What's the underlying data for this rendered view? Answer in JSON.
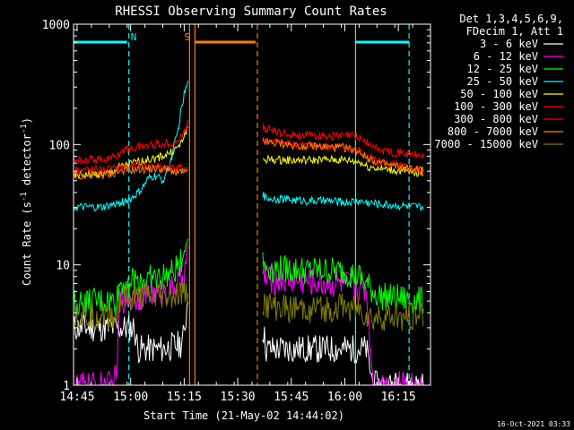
{
  "chart_data": {
    "type": "line",
    "title": "RHESSI Observing Summary Count Rates",
    "xlabel": "Start Time (21-May-02 14:44:02)",
    "ylabel_main": "Count Rate (s",
    "ylabel_sup1": "-1",
    "ylabel_mid": " detector",
    "ylabel_sup2": "-1",
    "ylabel_end": ")",
    "y_scale": "log",
    "ylim": [
      1,
      1000
    ],
    "xlim_minutes": [
      0,
      100
    ],
    "x_ticks": [
      "14:45",
      "15:00",
      "15:15",
      "15:30",
      "15:45",
      "16:00",
      "16:15"
    ],
    "x_tick_minutes": [
      1,
      16,
      31,
      46,
      61,
      76,
      91
    ],
    "y_ticks": [
      "1",
      "10",
      "100",
      "1000"
    ],
    "y_tick_values": [
      1,
      10,
      100,
      1000
    ],
    "legend_header": [
      "Det 1,3,4,5,6,9,",
      "FDecim 1, Att 1"
    ],
    "series": [
      {
        "name": "3 - 6 keV",
        "color": "#ffffff",
        "x": [
          0,
          17,
          18,
          25,
          30,
          31,
          32,
          53,
          54,
          62,
          68,
          74,
          80,
          82,
          84,
          98
        ],
        "y": [
          3.0,
          3.0,
          2.0,
          2.0,
          2.2,
          2.6,
          5.5,
          3.0,
          2.0,
          2.0,
          2.0,
          2.0,
          2.0,
          2.0,
          1.0,
          1.0
        ]
      },
      {
        "name": "6 - 12 keV",
        "color": "#ff00ff",
        "x": [
          0,
          11,
          12,
          13,
          18,
          24,
          28,
          30,
          31,
          32,
          53,
          54,
          60,
          66,
          72,
          76,
          80,
          82,
          84,
          98
        ],
        "y": [
          1.0,
          1.0,
          1.2,
          5.2,
          5.5,
          5.8,
          6.3,
          7.5,
          8.5,
          14,
          8.5,
          7.5,
          7.5,
          7.3,
          7.0,
          7.0,
          6.5,
          6.3,
          1.0,
          1.0
        ]
      },
      {
        "name": "12 - 25 keV",
        "color": "#00ff00",
        "x": [
          0,
          12,
          13,
          18,
          24,
          28,
          30,
          31,
          32,
          53,
          54,
          60,
          66,
          72,
          76,
          80,
          82,
          84,
          86,
          98
        ],
        "y": [
          4.8,
          5.0,
          7.0,
          7.5,
          7.8,
          8.5,
          10.5,
          13,
          17,
          10.5,
          9.5,
          9.2,
          9.0,
          9.0,
          8.8,
          8.0,
          7.0,
          6.0,
          5.5,
          5.0
        ]
      },
      {
        "name": "25 - 50 keV",
        "color": "#00ffff",
        "x": [
          0,
          8,
          12,
          16,
          19,
          21,
          23,
          25,
          27,
          29,
          30,
          31,
          32,
          53,
          54,
          60,
          66,
          72,
          76,
          80,
          82,
          86,
          92,
          98
        ],
        "y": [
          30,
          30,
          32,
          35,
          42,
          52,
          55,
          50,
          70,
          120,
          180,
          260,
          320,
          38,
          36,
          35,
          34,
          34,
          33,
          34,
          33,
          32,
          31,
          30
        ]
      },
      {
        "name": "50 - 100 keV",
        "color": "#ffff00",
        "x": [
          0,
          10,
          13,
          18,
          24,
          28,
          30,
          31,
          32,
          53,
          54,
          60,
          66,
          72,
          76,
          80,
          82,
          86,
          92,
          98
        ],
        "y": [
          55,
          58,
          65,
          72,
          78,
          88,
          100,
          120,
          140,
          75,
          75,
          74,
          74,
          75,
          74,
          72,
          66,
          63,
          60,
          58
        ]
      },
      {
        "name": "100 - 300 keV",
        "color": "#ff0000",
        "x": [
          0,
          10,
          12,
          14,
          18,
          22,
          26,
          29,
          30,
          31,
          32,
          53,
          54,
          58,
          62,
          70,
          78,
          80,
          82,
          84,
          86,
          92,
          98
        ],
        "y": [
          75,
          76,
          80,
          90,
          95,
          100,
          102,
          105,
          115,
          130,
          150,
          140,
          135,
          125,
          120,
          118,
          118,
          115,
          105,
          95,
          90,
          85,
          80
        ]
      },
      {
        "name": "300 - 800 keV",
        "color": "#ff0000",
        "x": [
          0,
          10,
          13,
          18,
          24,
          28,
          30,
          31,
          32,
          53,
          54,
          60,
          66,
          72,
          76,
          80,
          82,
          86,
          92,
          98
        ],
        "y": [
          62,
          62,
          65,
          67,
          66,
          64,
          64,
          64,
          64,
          110,
          108,
          102,
          98,
          96,
          95,
          90,
          80,
          72,
          66,
          60
        ]
      },
      {
        "name": "800 - 7000 keV",
        "color": "#ff7f00",
        "x": [
          0,
          10,
          13,
          18,
          24,
          28,
          30,
          31,
          32,
          53,
          54,
          60,
          66,
          72,
          76,
          80,
          82,
          86,
          92,
          98
        ],
        "y": [
          55,
          56,
          60,
          62,
          63,
          60,
          59,
          58,
          58,
          108,
          104,
          100,
          97,
          95,
          94,
          88,
          78,
          70,
          64,
          62
        ]
      },
      {
        "name": "7000 - 15000 keV",
        "color": "#7f7f00",
        "x": [
          0,
          12,
          13,
          18,
          24,
          28,
          30,
          31,
          32,
          53,
          54,
          60,
          66,
          72,
          76,
          80,
          82,
          84,
          86,
          98
        ],
        "y": [
          3.8,
          3.8,
          5.0,
          5.2,
          5.5,
          5.5,
          5.8,
          5.5,
          6.0,
          5.0,
          4.5,
          4.3,
          4.3,
          4.3,
          4.5,
          4.2,
          3.8,
          3.5,
          3.6,
          3.8
        ]
      }
    ],
    "bars": [
      {
        "label": "N",
        "color": "#00ffff",
        "segments": [
          [
            0,
            15
          ],
          [
            79,
            94
          ]
        ]
      },
      {
        "label": "S",
        "color": "#ff7f00",
        "segments": [
          [
            34,
            51
          ]
        ]
      }
    ],
    "vlines": [
      {
        "minute": 15.5,
        "color": "#00ffff",
        "style": "dashed"
      },
      {
        "minute": 79,
        "color": "#00ffff",
        "style": "solid"
      },
      {
        "minute": 94,
        "color": "#00ffff",
        "style": "dashed"
      },
      {
        "minute": 32.5,
        "color": "#ff7f00",
        "style": "solid"
      },
      {
        "minute": 34,
        "color": "#ff7f00",
        "style": "solid"
      },
      {
        "minute": 51.5,
        "color": "#ff7f00",
        "style": "dashed"
      }
    ]
  },
  "footer_timestamp": "16-Oct-2021 03:33"
}
